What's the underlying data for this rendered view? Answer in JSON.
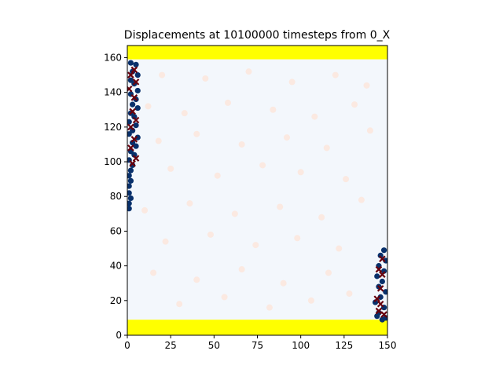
{
  "chart_data": {
    "type": "scatter",
    "title": "Displacements at 10100000 timesteps from 0_X",
    "xlabel": "",
    "ylabel": "",
    "xlim": [
      0,
      150
    ],
    "ylim": [
      0,
      167
    ],
    "xticks": [
      0,
      25,
      50,
      75,
      100,
      125,
      150
    ],
    "yticks": [
      0,
      20,
      40,
      60,
      80,
      100,
      120,
      140,
      160
    ],
    "grid": false,
    "legend": "none",
    "regions": [
      {
        "label": "bottom wall",
        "color": "#ffff00",
        "x": [
          0,
          150
        ],
        "y": [
          0,
          9
        ]
      },
      {
        "label": "top wall",
        "color": "#ffff00",
        "x": [
          0,
          150
        ],
        "y": [
          159,
          167
        ]
      },
      {
        "label": "bulk",
        "color": "#f3f7fc",
        "x": [
          0,
          150
        ],
        "y": [
          9,
          159
        ]
      }
    ],
    "series": [
      {
        "color": "#08306b",
        "marker": "circle",
        "points": [
          [
            2,
            157
          ],
          [
            5,
            156
          ],
          [
            3,
            152
          ],
          [
            6,
            150
          ],
          [
            2,
            147
          ],
          [
            4,
            145
          ],
          [
            6,
            141
          ],
          [
            2,
            139
          ],
          [
            5,
            136
          ],
          [
            3,
            133
          ],
          [
            6,
            131
          ],
          [
            2,
            128
          ],
          [
            4,
            126
          ],
          [
            1,
            123
          ],
          [
            5,
            121
          ],
          [
            3,
            118
          ],
          [
            1,
            116
          ],
          [
            6,
            114
          ],
          [
            3,
            111
          ],
          [
            5,
            109
          ],
          [
            2,
            106
          ],
          [
            4,
            104
          ],
          [
            1,
            101
          ],
          [
            3,
            98
          ],
          [
            2,
            95
          ],
          [
            1,
            92
          ],
          [
            2,
            89
          ],
          [
            1,
            86
          ],
          [
            1,
            82
          ],
          [
            2,
            79
          ],
          [
            1,
            76
          ],
          [
            1,
            73
          ],
          [
            148,
            49
          ],
          [
            146,
            46
          ],
          [
            149,
            43
          ],
          [
            145,
            40
          ],
          [
            148,
            37
          ],
          [
            144,
            34
          ],
          [
            147,
            31
          ],
          [
            145,
            28
          ],
          [
            149,
            25
          ],
          [
            146,
            22
          ],
          [
            143,
            19
          ],
          [
            148,
            16
          ],
          [
            145,
            13
          ],
          [
            149,
            10
          ],
          [
            147,
            9
          ],
          [
            144,
            11
          ]
        ]
      },
      {
        "color": "#67000d",
        "marker": "x",
        "points": [
          [
            4,
            153
          ],
          [
            2,
            150
          ],
          [
            5,
            146
          ],
          [
            1,
            142
          ],
          [
            4,
            137
          ],
          [
            3,
            129
          ],
          [
            5,
            124
          ],
          [
            2,
            120
          ],
          [
            4,
            113
          ],
          [
            2,
            108
          ],
          [
            5,
            102
          ],
          [
            3,
            99
          ],
          [
            147,
            44
          ],
          [
            145,
            38
          ],
          [
            147,
            35
          ],
          [
            146,
            27
          ],
          [
            144,
            21
          ],
          [
            146,
            18
          ],
          [
            145,
            14
          ],
          [
            148,
            12
          ]
        ]
      }
    ],
    "background_points": [
      [
        20,
        150
      ],
      [
        45,
        148
      ],
      [
        70,
        152
      ],
      [
        95,
        146
      ],
      [
        120,
        150
      ],
      [
        138,
        144
      ],
      [
        12,
        132
      ],
      [
        33,
        128
      ],
      [
        58,
        134
      ],
      [
        84,
        130
      ],
      [
        108,
        126
      ],
      [
        131,
        133
      ],
      [
        18,
        112
      ],
      [
        40,
        116
      ],
      [
        66,
        110
      ],
      [
        92,
        114
      ],
      [
        115,
        108
      ],
      [
        140,
        118
      ],
      [
        25,
        96
      ],
      [
        52,
        92
      ],
      [
        78,
        98
      ],
      [
        100,
        94
      ],
      [
        126,
        90
      ],
      [
        10,
        72
      ],
      [
        36,
        76
      ],
      [
        62,
        70
      ],
      [
        88,
        74
      ],
      [
        112,
        68
      ],
      [
        135,
        78
      ],
      [
        22,
        54
      ],
      [
        48,
        58
      ],
      [
        74,
        52
      ],
      [
        98,
        56
      ],
      [
        122,
        50
      ],
      [
        15,
        36
      ],
      [
        40,
        32
      ],
      [
        66,
        38
      ],
      [
        90,
        30
      ],
      [
        116,
        36
      ],
      [
        30,
        18
      ],
      [
        56,
        22
      ],
      [
        82,
        16
      ],
      [
        106,
        20
      ],
      [
        128,
        24
      ]
    ]
  }
}
